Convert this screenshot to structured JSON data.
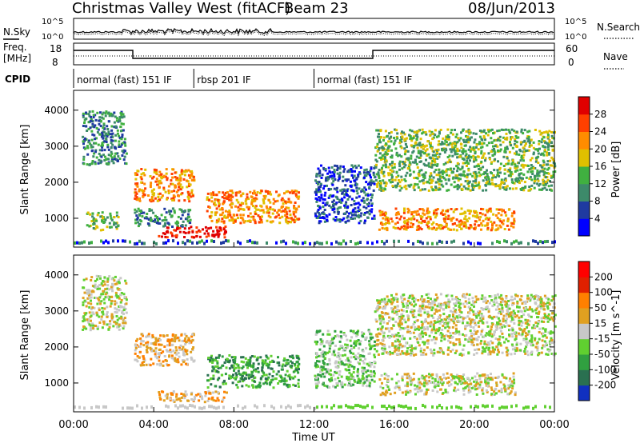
{
  "header": {
    "title": "Christmas Valley West (fitACF)",
    "beam": "Beam 23",
    "date": "08/Jun/2013"
  },
  "nsky_panel": {
    "left_label": "N.Sky",
    "right_label": "N.Search",
    "left_ticks": [
      "10^5",
      "10^0"
    ],
    "right_ticks": [
      "10^5",
      "10^0"
    ]
  },
  "freq_panel": {
    "left_label_1": "Freq.",
    "left_label_2": "[MHz]",
    "right_label": "Nave",
    "left_ticks": [
      "18",
      "8"
    ],
    "right_ticks": [
      "60",
      "0"
    ]
  },
  "cpid": {
    "label": "CPID",
    "segments": [
      {
        "name": "normal (fast) 151 IF",
        "start_hour": 0,
        "end_hour": 6
      },
      {
        "name": "rbsp 201 IF",
        "start_hour": 6,
        "end_hour": 12
      },
      {
        "name": "normal (fast) 151 IF",
        "start_hour": 12,
        "end_hour": 24
      }
    ]
  },
  "chart_data": [
    {
      "type": "heatmap",
      "panel": "power",
      "ylabel": "Slant Range [km]",
      "ylim": [
        200,
        4550
      ],
      "yticks": [
        1000,
        2000,
        3000,
        4000
      ],
      "xlim": [
        0,
        24
      ],
      "colorbar": {
        "label": "Power [dB]",
        "ticks": [
          "28",
          "24",
          "20",
          "16",
          "12",
          "8",
          "4"
        ],
        "colors": [
          "#0000ff",
          "#1f3aa0",
          "#3d8a6a",
          "#40b040",
          "#e0c000",
          "#ff8c00",
          "#ff4000",
          "#e00000"
        ]
      },
      "echo_regions": [
        {
          "t0": 0.4,
          "t1": 2.6,
          "r0": 2500,
          "r1": 4000,
          "level": 2
        },
        {
          "t0": 3.0,
          "t1": 6.0,
          "r0": 1500,
          "r1": 2400,
          "level": 5
        },
        {
          "t0": 0.6,
          "t1": 2.2,
          "r0": 700,
          "r1": 1200,
          "level": 3
        },
        {
          "t0": 3.0,
          "t1": 5.8,
          "r0": 800,
          "r1": 1300,
          "level": 2
        },
        {
          "t0": 4.2,
          "t1": 7.6,
          "r0": 500,
          "r1": 800,
          "level": 7
        },
        {
          "t0": 6.6,
          "t1": 11.2,
          "r0": 900,
          "r1": 1800,
          "level": 5
        },
        {
          "t0": 12.0,
          "t1": 15.0,
          "r0": 900,
          "r1": 2500,
          "level": 1
        },
        {
          "t0": 15.0,
          "t1": 24.0,
          "r0": 1800,
          "r1": 3500,
          "level": 3
        },
        {
          "t0": 15.2,
          "t1": 22.0,
          "r0": 700,
          "r1": 1300,
          "level": 5
        }
      ]
    },
    {
      "type": "heatmap",
      "panel": "velocity",
      "ylabel": "Slant Range [km]",
      "ylim": [
        200,
        4550
      ],
      "yticks": [
        1000,
        2000,
        3000,
        4000
      ],
      "xlim": [
        0,
        24
      ],
      "xticks": [
        "00:00",
        "04:00",
        "08:00",
        "12:00",
        "16:00",
        "20:00",
        "00:00"
      ],
      "xlabel": "Time UT",
      "colorbar": {
        "label": "Velocity [m s^-1]",
        "ticks": [
          "200",
          "100",
          "50",
          "15",
          "-15",
          "-50",
          "-100",
          "-200"
        ],
        "colors": [
          "#1030c0",
          "#2a7050",
          "#30a040",
          "#60d030",
          "#c8c8c8",
          "#e0a020",
          "#ff8000",
          "#e02000",
          "#ff0000"
        ]
      },
      "echo_regions": [
        {
          "t0": 0.4,
          "t1": 2.6,
          "r0": 2500,
          "r1": 4000,
          "level": 4
        },
        {
          "t0": 3.0,
          "t1": 6.0,
          "r0": 1500,
          "r1": 2400,
          "level": 5
        },
        {
          "t0": 4.2,
          "t1": 7.6,
          "r0": 500,
          "r1": 800,
          "level": 5
        },
        {
          "t0": 6.6,
          "t1": 11.2,
          "r0": 900,
          "r1": 1800,
          "level": 2
        },
        {
          "t0": 12.0,
          "t1": 15.0,
          "r0": 900,
          "r1": 2500,
          "level": 3
        },
        {
          "t0": 15.0,
          "t1": 24.0,
          "r0": 1800,
          "r1": 3500,
          "level": 4
        },
        {
          "t0": 15.2,
          "t1": 22.0,
          "r0": 700,
          "r1": 1300,
          "level": 4
        }
      ]
    }
  ]
}
